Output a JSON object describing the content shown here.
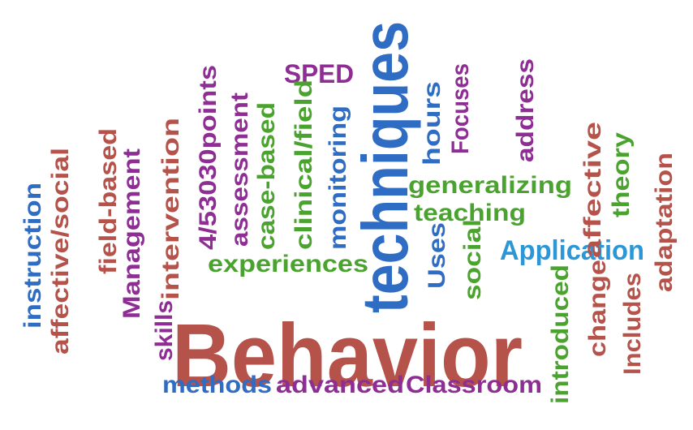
{
  "palette": {
    "red": "#b5524a",
    "blue": "#2f6cc4",
    "purple": "#8e2d93",
    "green": "#4ba32f",
    "lightblue": "#2b97d6"
  },
  "words": [
    {
      "text": "Behavior",
      "color": "red"
    },
    {
      "text": "techniques",
      "color": "blue"
    },
    {
      "text": "SPED",
      "color": "purple"
    },
    {
      "text": "4/53030points",
      "color": "purple"
    },
    {
      "text": "assessment",
      "color": "purple"
    },
    {
      "text": "case-based",
      "color": "green"
    },
    {
      "text": "clinical/field",
      "color": "green"
    },
    {
      "text": "monitoring",
      "color": "blue"
    },
    {
      "text": "experiences",
      "color": "green"
    },
    {
      "text": "intervention",
      "color": "red"
    },
    {
      "text": "field-based",
      "color": "red"
    },
    {
      "text": "Management",
      "color": "purple"
    },
    {
      "text": "skills",
      "color": "purple"
    },
    {
      "text": "instruction",
      "color": "blue"
    },
    {
      "text": "affective/social",
      "color": "red"
    },
    {
      "text": "hours",
      "color": "blue"
    },
    {
      "text": "Uses",
      "color": "blue"
    },
    {
      "text": "Focuses",
      "color": "purple"
    },
    {
      "text": "social",
      "color": "green"
    },
    {
      "text": "generalizing",
      "color": "green"
    },
    {
      "text": "teaching",
      "color": "green"
    },
    {
      "text": "address",
      "color": "purple"
    },
    {
      "text": "Application",
      "color": "lightblue"
    },
    {
      "text": "introduced",
      "color": "green"
    },
    {
      "text": "change",
      "color": "red"
    },
    {
      "text": "affective",
      "color": "red"
    },
    {
      "text": "theory",
      "color": "green"
    },
    {
      "text": "Includes",
      "color": "red"
    },
    {
      "text": "adaptation",
      "color": "red"
    },
    {
      "text": "methods",
      "color": "blue"
    },
    {
      "text": "advanced",
      "color": "purple"
    },
    {
      "text": "Classroom",
      "color": "purple"
    }
  ]
}
